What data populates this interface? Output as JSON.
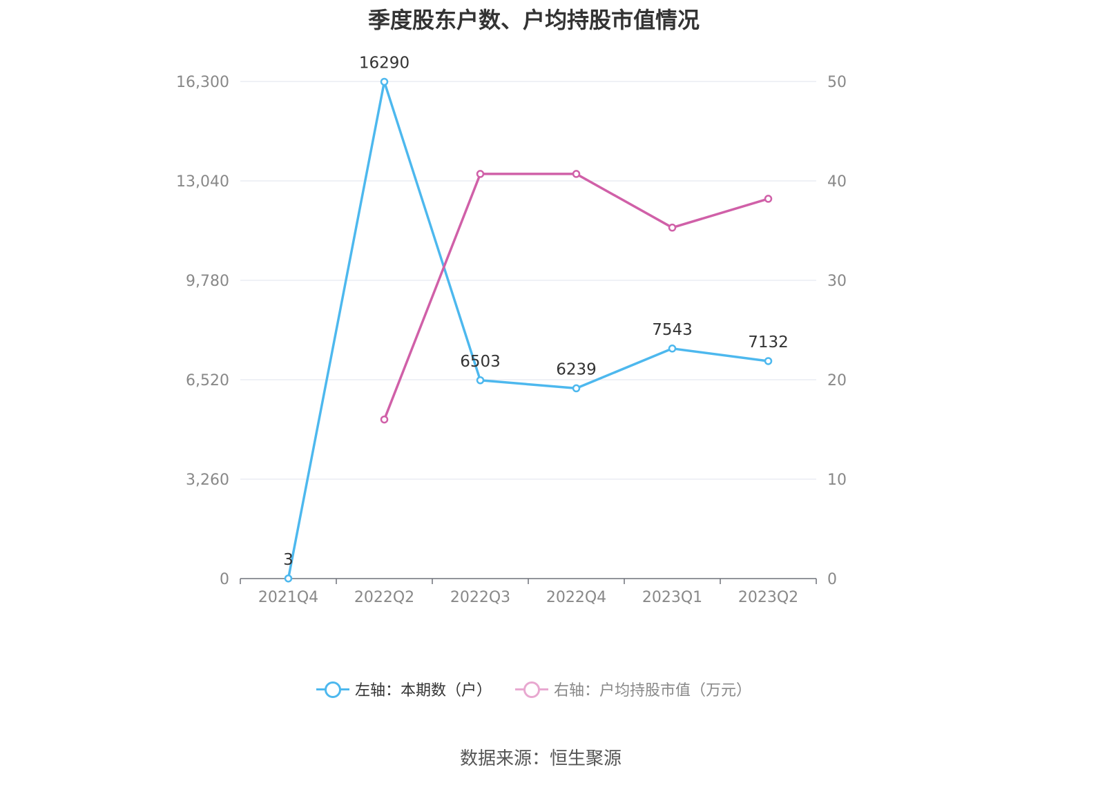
{
  "chart_data": {
    "type": "line",
    "title": "季度股东户数、户均持股市值情况",
    "categories": [
      "2021Q4",
      "2022Q2",
      "2022Q3",
      "2022Q4",
      "2023Q1",
      "2023Q2"
    ],
    "y_left": {
      "ticks": [
        0,
        3260,
        6520,
        9780,
        13040,
        16300
      ],
      "tick_labels": [
        "0",
        "3,260",
        "6,520",
        "9,780",
        "13,040",
        "16,300"
      ],
      "range": [
        0,
        16300
      ]
    },
    "y_right": {
      "ticks": [
        0,
        10,
        20,
        30,
        40,
        50
      ],
      "tick_labels": [
        "0",
        "10",
        "20",
        "30",
        "40",
        "50"
      ],
      "range": [
        0,
        50
      ]
    },
    "series": [
      {
        "name": "左轴：本期数（户）",
        "axis": "left",
        "color": "#4db8ee",
        "values": [
          3,
          16290,
          6503,
          6239,
          7543,
          7132
        ],
        "labels": [
          "3",
          "16290",
          "6503",
          "6239",
          "7543",
          "7132"
        ]
      },
      {
        "name": "右轴：户均持股市值（万元）",
        "axis": "right",
        "color": "#d060a8",
        "values": [
          null,
          16.0,
          40.7,
          40.7,
          35.3,
          38.2
        ]
      }
    ],
    "grid": true,
    "legend_position": "bottom"
  },
  "legend_colors": {
    "left_text": "#333333",
    "right_text": "#888888",
    "right_swatch": "#e8a8d0"
  },
  "source_note": "数据来源：恒生聚源"
}
